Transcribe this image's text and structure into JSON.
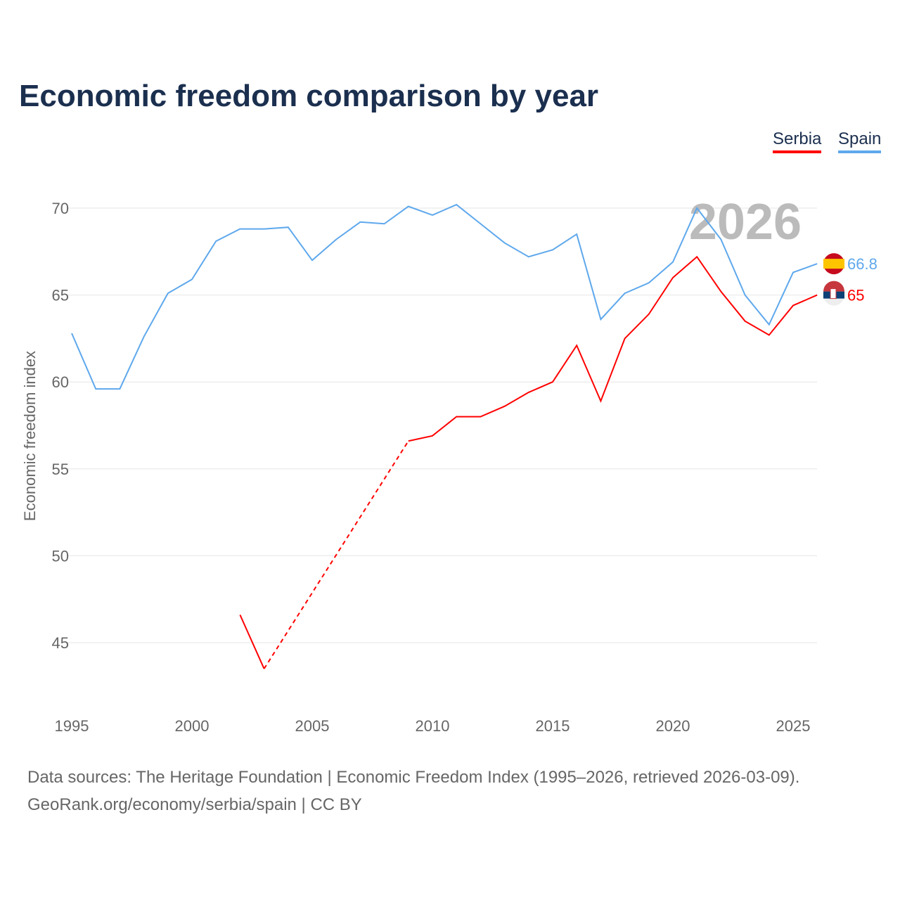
{
  "title": "Economic freedom comparison by year",
  "legend": {
    "serbia": "Serbia",
    "spain": "Spain"
  },
  "footer": {
    "line1": "Data sources: The Heritage Foundation | Economic Freedom Index (1995–2026, retrieved 2026-03-09).",
    "line2": "GeoRank.org/economy/serbia/spain | CC BY"
  },
  "chart_data": {
    "type": "line",
    "title": "Economic freedom comparison by year",
    "ylabel": "Economic freedom index",
    "xlabel": "",
    "xlim": [
      1995,
      2026
    ],
    "ylim": [
      42,
      72
    ],
    "yticks": [
      45,
      50,
      55,
      60,
      65,
      70
    ],
    "xticks": [
      1995,
      2000,
      2005,
      2010,
      2015,
      2020,
      2025
    ],
    "year_watermark": "2026",
    "grid": true,
    "legend_position": "top-right",
    "series": [
      {
        "name": "Spain",
        "color": "#5ea8ec",
        "end_label": "66.8",
        "x": [
          1995,
          1996,
          1997,
          1998,
          1999,
          2000,
          2001,
          2002,
          2003,
          2004,
          2005,
          2006,
          2007,
          2008,
          2009,
          2010,
          2011,
          2012,
          2013,
          2014,
          2015,
          2016,
          2017,
          2018,
          2019,
          2020,
          2021,
          2022,
          2023,
          2024,
          2025,
          2026
        ],
        "values": [
          62.8,
          59.6,
          59.6,
          62.6,
          65.1,
          65.9,
          68.1,
          68.8,
          68.8,
          68.9,
          67.0,
          68.2,
          69.2,
          69.1,
          70.1,
          69.6,
          70.2,
          69.1,
          68.0,
          67.2,
          67.6,
          68.5,
          63.6,
          65.1,
          65.7,
          66.9,
          70.0,
          68.2,
          65.0,
          63.3,
          66.3,
          66.8
        ]
      },
      {
        "name": "Serbia",
        "color": "#ff0000",
        "end_label": "65",
        "x": [
          2002,
          2003,
          2009,
          2010,
          2011,
          2012,
          2013,
          2014,
          2015,
          2016,
          2017,
          2018,
          2019,
          2020,
          2021,
          2022,
          2023,
          2024,
          2025,
          2026
        ],
        "values": [
          46.6,
          43.5,
          56.6,
          56.9,
          58.0,
          58.0,
          58.6,
          59.4,
          60.0,
          62.1,
          58.9,
          62.5,
          63.9,
          66.0,
          67.2,
          65.2,
          63.5,
          62.7,
          64.4,
          65.0
        ],
        "gap_dashed_between": [
          2003,
          2009
        ]
      }
    ]
  }
}
